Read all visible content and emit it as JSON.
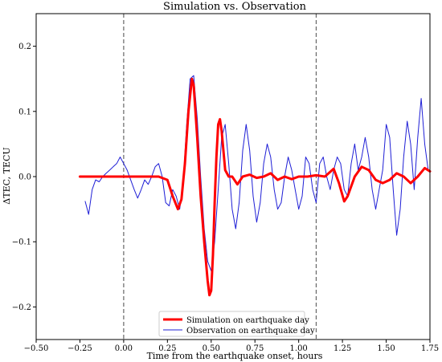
{
  "chart_data": {
    "type": "line",
    "title": "Simulation vs. Observation",
    "xlabel": "Time from the earthquake onset, hours",
    "ylabel": "ΔTEC, TECU",
    "xlim": [
      -0.5,
      1.75
    ],
    "ylim": [
      -0.25,
      0.25
    ],
    "xticks": [
      -0.5,
      -0.25,
      0.0,
      0.25,
      0.5,
      0.75,
      1.0,
      1.25,
      1.5,
      1.75
    ],
    "xtick_labels": [
      "−0.50",
      "−0.25",
      "0.00",
      "0.25",
      "0.50",
      "0.75",
      "1.00",
      "1.25",
      "1.50",
      "1.75"
    ],
    "yticks": [
      -0.2,
      -0.1,
      0.0,
      0.1,
      0.2
    ],
    "ytick_labels": [
      "−0.2",
      "−0.1",
      "0.0",
      "0.1",
      "0.2"
    ],
    "grid": false,
    "legend_position": "lower center",
    "vlines": [
      0.0,
      1.1
    ],
    "series": [
      {
        "name": "Simulation on earthquake day",
        "color": "#ff0000",
        "x": [
          -0.25,
          -0.1,
          0.0,
          0.1,
          0.2,
          0.25,
          0.28,
          0.31,
          0.33,
          0.35,
          0.37,
          0.39,
          0.4,
          0.42,
          0.44,
          0.46,
          0.48,
          0.49,
          0.5,
          0.51,
          0.52,
          0.53,
          0.54,
          0.55,
          0.56,
          0.58,
          0.6,
          0.62,
          0.65,
          0.68,
          0.72,
          0.76,
          0.8,
          0.84,
          0.88,
          0.92,
          0.96,
          1.0,
          1.05,
          1.1,
          1.15,
          1.2,
          1.23,
          1.26,
          1.28,
          1.32,
          1.36,
          1.4,
          1.44,
          1.48,
          1.52,
          1.56,
          1.6,
          1.64,
          1.68,
          1.72,
          1.75
        ],
        "y": [
          0.0,
          0.0,
          0.0,
          0.0,
          0.0,
          -0.005,
          -0.03,
          -0.05,
          -0.035,
          0.02,
          0.1,
          0.15,
          0.14,
          0.06,
          -0.03,
          -0.1,
          -0.16,
          -0.182,
          -0.175,
          -0.12,
          -0.04,
          0.03,
          0.08,
          0.088,
          0.07,
          0.01,
          0.0,
          0.0,
          -0.012,
          0.0,
          0.003,
          -0.002,
          0.0,
          0.005,
          -0.005,
          0.0,
          -0.004,
          0.0,
          0.0,
          0.002,
          0.0,
          0.012,
          -0.01,
          -0.038,
          -0.03,
          0.0,
          0.015,
          0.01,
          -0.005,
          -0.01,
          -0.005,
          0.005,
          0.0,
          -0.01,
          0.0,
          0.013,
          0.008
        ]
      },
      {
        "name": "Observation on earthquake day",
        "color": "#1f1fd6",
        "x": [
          -0.22,
          -0.2,
          -0.18,
          -0.16,
          -0.14,
          -0.12,
          -0.1,
          -0.08,
          -0.06,
          -0.04,
          -0.02,
          0.0,
          0.02,
          0.04,
          0.06,
          0.08,
          0.1,
          0.12,
          0.14,
          0.16,
          0.18,
          0.2,
          0.22,
          0.24,
          0.26,
          0.28,
          0.3,
          0.32,
          0.34,
          0.36,
          0.38,
          0.4,
          0.42,
          0.44,
          0.46,
          0.48,
          0.5,
          0.52,
          0.54,
          0.56,
          0.58,
          0.6,
          0.62,
          0.64,
          0.66,
          0.68,
          0.7,
          0.72,
          0.74,
          0.76,
          0.78,
          0.8,
          0.82,
          0.84,
          0.86,
          0.88,
          0.9,
          0.92,
          0.94,
          0.96,
          0.98,
          1.0,
          1.02,
          1.04,
          1.06,
          1.08,
          1.1,
          1.12,
          1.14,
          1.16,
          1.18,
          1.2,
          1.22,
          1.24,
          1.26,
          1.28,
          1.3,
          1.32,
          1.34,
          1.36,
          1.38,
          1.4,
          1.42,
          1.44,
          1.46,
          1.48,
          1.5,
          1.52,
          1.54,
          1.56,
          1.58,
          1.6,
          1.62,
          1.64,
          1.66,
          1.68,
          1.7,
          1.72,
          1.74
        ],
        "y": [
          -0.038,
          -0.058,
          -0.02,
          -0.005,
          -0.008,
          0.0,
          0.005,
          0.01,
          0.015,
          0.02,
          0.03,
          0.02,
          0.01,
          -0.005,
          -0.02,
          -0.033,
          -0.02,
          -0.005,
          -0.012,
          0.0,
          0.015,
          0.02,
          0.0,
          -0.04,
          -0.045,
          -0.02,
          -0.03,
          -0.05,
          -0.01,
          0.08,
          0.15,
          0.155,
          0.09,
          0.0,
          -0.08,
          -0.13,
          -0.145,
          -0.1,
          -0.02,
          0.06,
          0.08,
          0.02,
          -0.05,
          -0.08,
          -0.04,
          0.04,
          0.08,
          0.04,
          -0.03,
          -0.07,
          -0.04,
          0.02,
          0.05,
          0.03,
          -0.02,
          -0.05,
          -0.04,
          0.0,
          0.03,
          0.01,
          -0.02,
          -0.05,
          -0.03,
          0.03,
          0.02,
          -0.02,
          -0.04,
          0.02,
          0.03,
          0.0,
          -0.02,
          0.01,
          0.03,
          0.02,
          -0.02,
          -0.03,
          0.02,
          0.05,
          0.01,
          0.03,
          0.06,
          0.03,
          -0.02,
          -0.05,
          -0.02,
          0.01,
          0.08,
          0.06,
          -0.02,
          -0.09,
          -0.05,
          0.03,
          0.085,
          0.05,
          -0.02,
          0.06,
          0.12,
          0.05,
          0.01
        ]
      }
    ]
  }
}
